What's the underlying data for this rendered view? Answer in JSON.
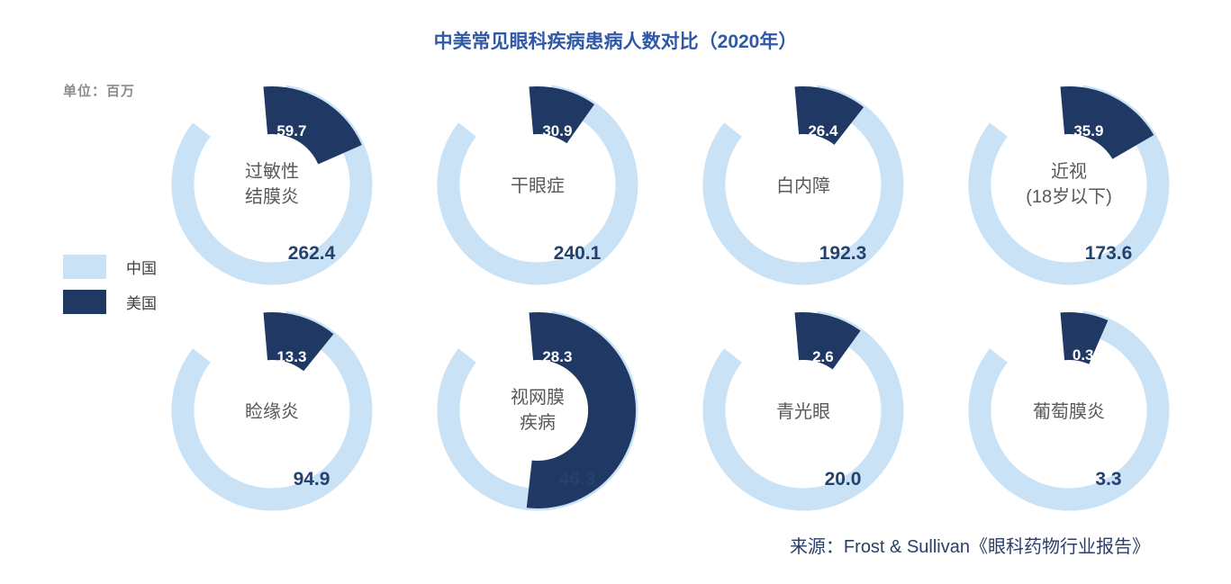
{
  "title": "中美常见眼科疾病患病人数对比（2020年）",
  "title_color": "#2e59a6",
  "unit_label": "单位：百万",
  "legend": [
    {
      "label": "中国",
      "color": "#c9e2f6"
    },
    {
      "label": "美国",
      "color": "#1f3864"
    }
  ],
  "source": "来源：Frost & Sullivan《眼科药物行业报告》",
  "chart_data": {
    "type": "pie",
    "subtype": "donut-comparison-grid",
    "title": "中美常见眼科疾病患病人数对比（2020年）",
    "unit": "百万",
    "series_names": [
      "中国",
      "美国"
    ],
    "colors": {
      "china": "#c9e2f6",
      "usa": "#1f3864"
    },
    "grid": {
      "rows": 2,
      "cols": 4
    },
    "items": [
      {
        "name": "过敏性结膜炎",
        "name_lines": [
          "过敏性",
          "结膜炎"
        ],
        "china": 262.4,
        "usa": 59.7,
        "china_display": "262.4",
        "usa_display": "59.7"
      },
      {
        "name": "干眼症",
        "name_lines": [
          "干眼症"
        ],
        "china": 240.1,
        "usa": 30.9,
        "china_display": "240.1",
        "usa_display": "30.9"
      },
      {
        "name": "白内障",
        "name_lines": [
          "白内障"
        ],
        "china": 192.3,
        "usa": 26.4,
        "china_display": "192.3",
        "usa_display": "26.4"
      },
      {
        "name": "近视(18岁以下)",
        "name_lines": [
          "近视",
          "(18岁以下)"
        ],
        "china": 173.6,
        "usa": 35.9,
        "china_display": "173.6",
        "usa_display": "35.9"
      },
      {
        "name": "睑缘炎",
        "name_lines": [
          "睑缘炎"
        ],
        "china": 94.9,
        "usa": 13.3,
        "china_display": "94.9",
        "usa_display": "13.3"
      },
      {
        "name": "视网膜疾病",
        "name_lines": [
          "视网膜",
          "疾病"
        ],
        "china": 46.3,
        "usa": 28.3,
        "china_display": "46.3",
        "usa_display": "28.3"
      },
      {
        "name": "青光眼",
        "name_lines": [
          "青光眼"
        ],
        "china": 20.0,
        "usa": 2.6,
        "china_display": "20.0",
        "usa_display": "2.6"
      },
      {
        "name": "葡萄膜炎",
        "name_lines": [
          "葡萄膜炎"
        ],
        "china": 3.3,
        "usa": 0.3,
        "china_display": "3.3",
        "usa_display": "0.3"
      }
    ]
  }
}
